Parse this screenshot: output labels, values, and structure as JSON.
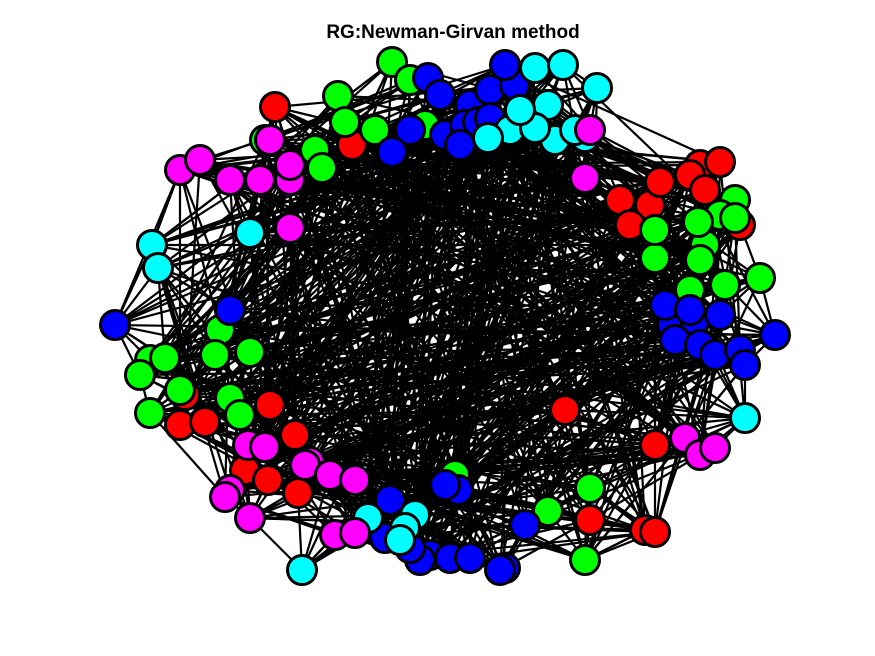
{
  "title": "RG:Newman-Girvan method",
  "communities": [
    {
      "name": "red",
      "color": "#ff0000"
    },
    {
      "name": "green",
      "color": "#00ff00"
    },
    {
      "name": "blue",
      "color": "#0000ff"
    },
    {
      "name": "cyan",
      "color": "#00ffff"
    },
    {
      "name": "magenta",
      "color": "#ff00ff"
    }
  ],
  "node_count": 200,
  "edge_color": "#000000",
  "node_outline_color": "#000000",
  "background_color": "#ffffff"
}
